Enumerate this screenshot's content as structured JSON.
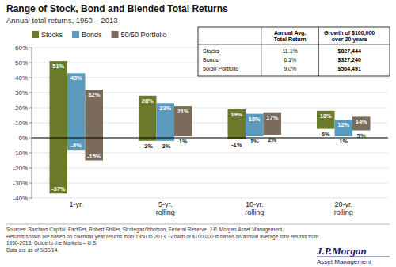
{
  "chart_data": {
    "type": "bar",
    "title": "Range of Stock, Bond and Blended Total Returns",
    "subtitle": "Annual total returns, 1950 – 2013",
    "categories": [
      "1-yr.",
      "5-yr.\nrolling",
      "10-yr.\nrolling",
      "20-yr.\nrolling"
    ],
    "series": [
      {
        "name": "Stocks",
        "color": "#6b7a2a",
        "values": [
          51,
          28,
          19,
          18
        ],
        "value_labels": [
          "51%",
          "28%",
          "19%",
          "18%"
        ],
        "low": [
          -37,
          -2,
          -1,
          6
        ],
        "low_labels": [
          "-37%",
          "-2%",
          "-1%",
          "6%"
        ]
      },
      {
        "name": "Bonds",
        "color": "#5b9abd",
        "values": [
          43,
          23,
          16,
          12
        ],
        "value_labels": [
          "43%",
          "23%",
          "16%",
          "12%"
        ],
        "low": [
          -8,
          -2,
          1,
          1
        ],
        "low_labels": [
          "-8%",
          "-2%",
          "1%",
          "1%"
        ]
      },
      {
        "name": "50/50 Portfolio",
        "color": "#7b6b5a",
        "values": [
          32,
          21,
          17,
          14
        ],
        "value_labels": [
          "32%",
          "21%",
          "17%",
          "14%"
        ],
        "low": [
          -15,
          1,
          2,
          5
        ],
        "low_labels": [
          "-15%",
          "1%",
          "2%",
          "5%"
        ]
      }
    ],
    "ylim": [
      -40,
      60
    ],
    "yticks": [
      {
        "value": -40,
        "label": "-40%"
      },
      {
        "value": -30,
        "label": "-30%"
      },
      {
        "value": -20,
        "label": "-20%"
      },
      {
        "value": -10,
        "label": "-10%"
      },
      {
        "value": 0,
        "label": "0%"
      },
      {
        "value": 10,
        "label": "10%"
      },
      {
        "value": 20,
        "label": "20%"
      },
      {
        "value": 30,
        "label": "30%"
      },
      {
        "value": 40,
        "label": "40%"
      },
      {
        "value": 50,
        "label": "50%"
      },
      {
        "value": 60,
        "label": "60%"
      }
    ],
    "grid": true,
    "legend": "top",
    "data_labels": true,
    "table": {
      "columns": [
        "Annual Avg.\nTotal Return",
        "Growth of $100,000\nover 20 years"
      ],
      "rows": [
        [
          "Stocks",
          "11.1%",
          "$827,444"
        ],
        [
          "Bonds",
          "6.1%",
          "$327,240"
        ],
        [
          "50/50 Portfolio",
          "9.0%",
          "$564,491"
        ]
      ]
    },
    "footnotes": [
      "Sources: Barclays Capital, FactSet, Robert Shiller, Strategas/Ibbotson, Federal Reserve, J.P. Morgan Asset Management.",
      "Returns shown are based on calendar year returns from 1950 to 2013. Growth of $100,000 is based on annual average total returns from\n1950-2013. Guide to the Markets – U.S.",
      "Data are as of 9/30/14."
    ],
    "annotations": [
      "J.P.Morgan",
      "Asset Management"
    ]
  }
}
